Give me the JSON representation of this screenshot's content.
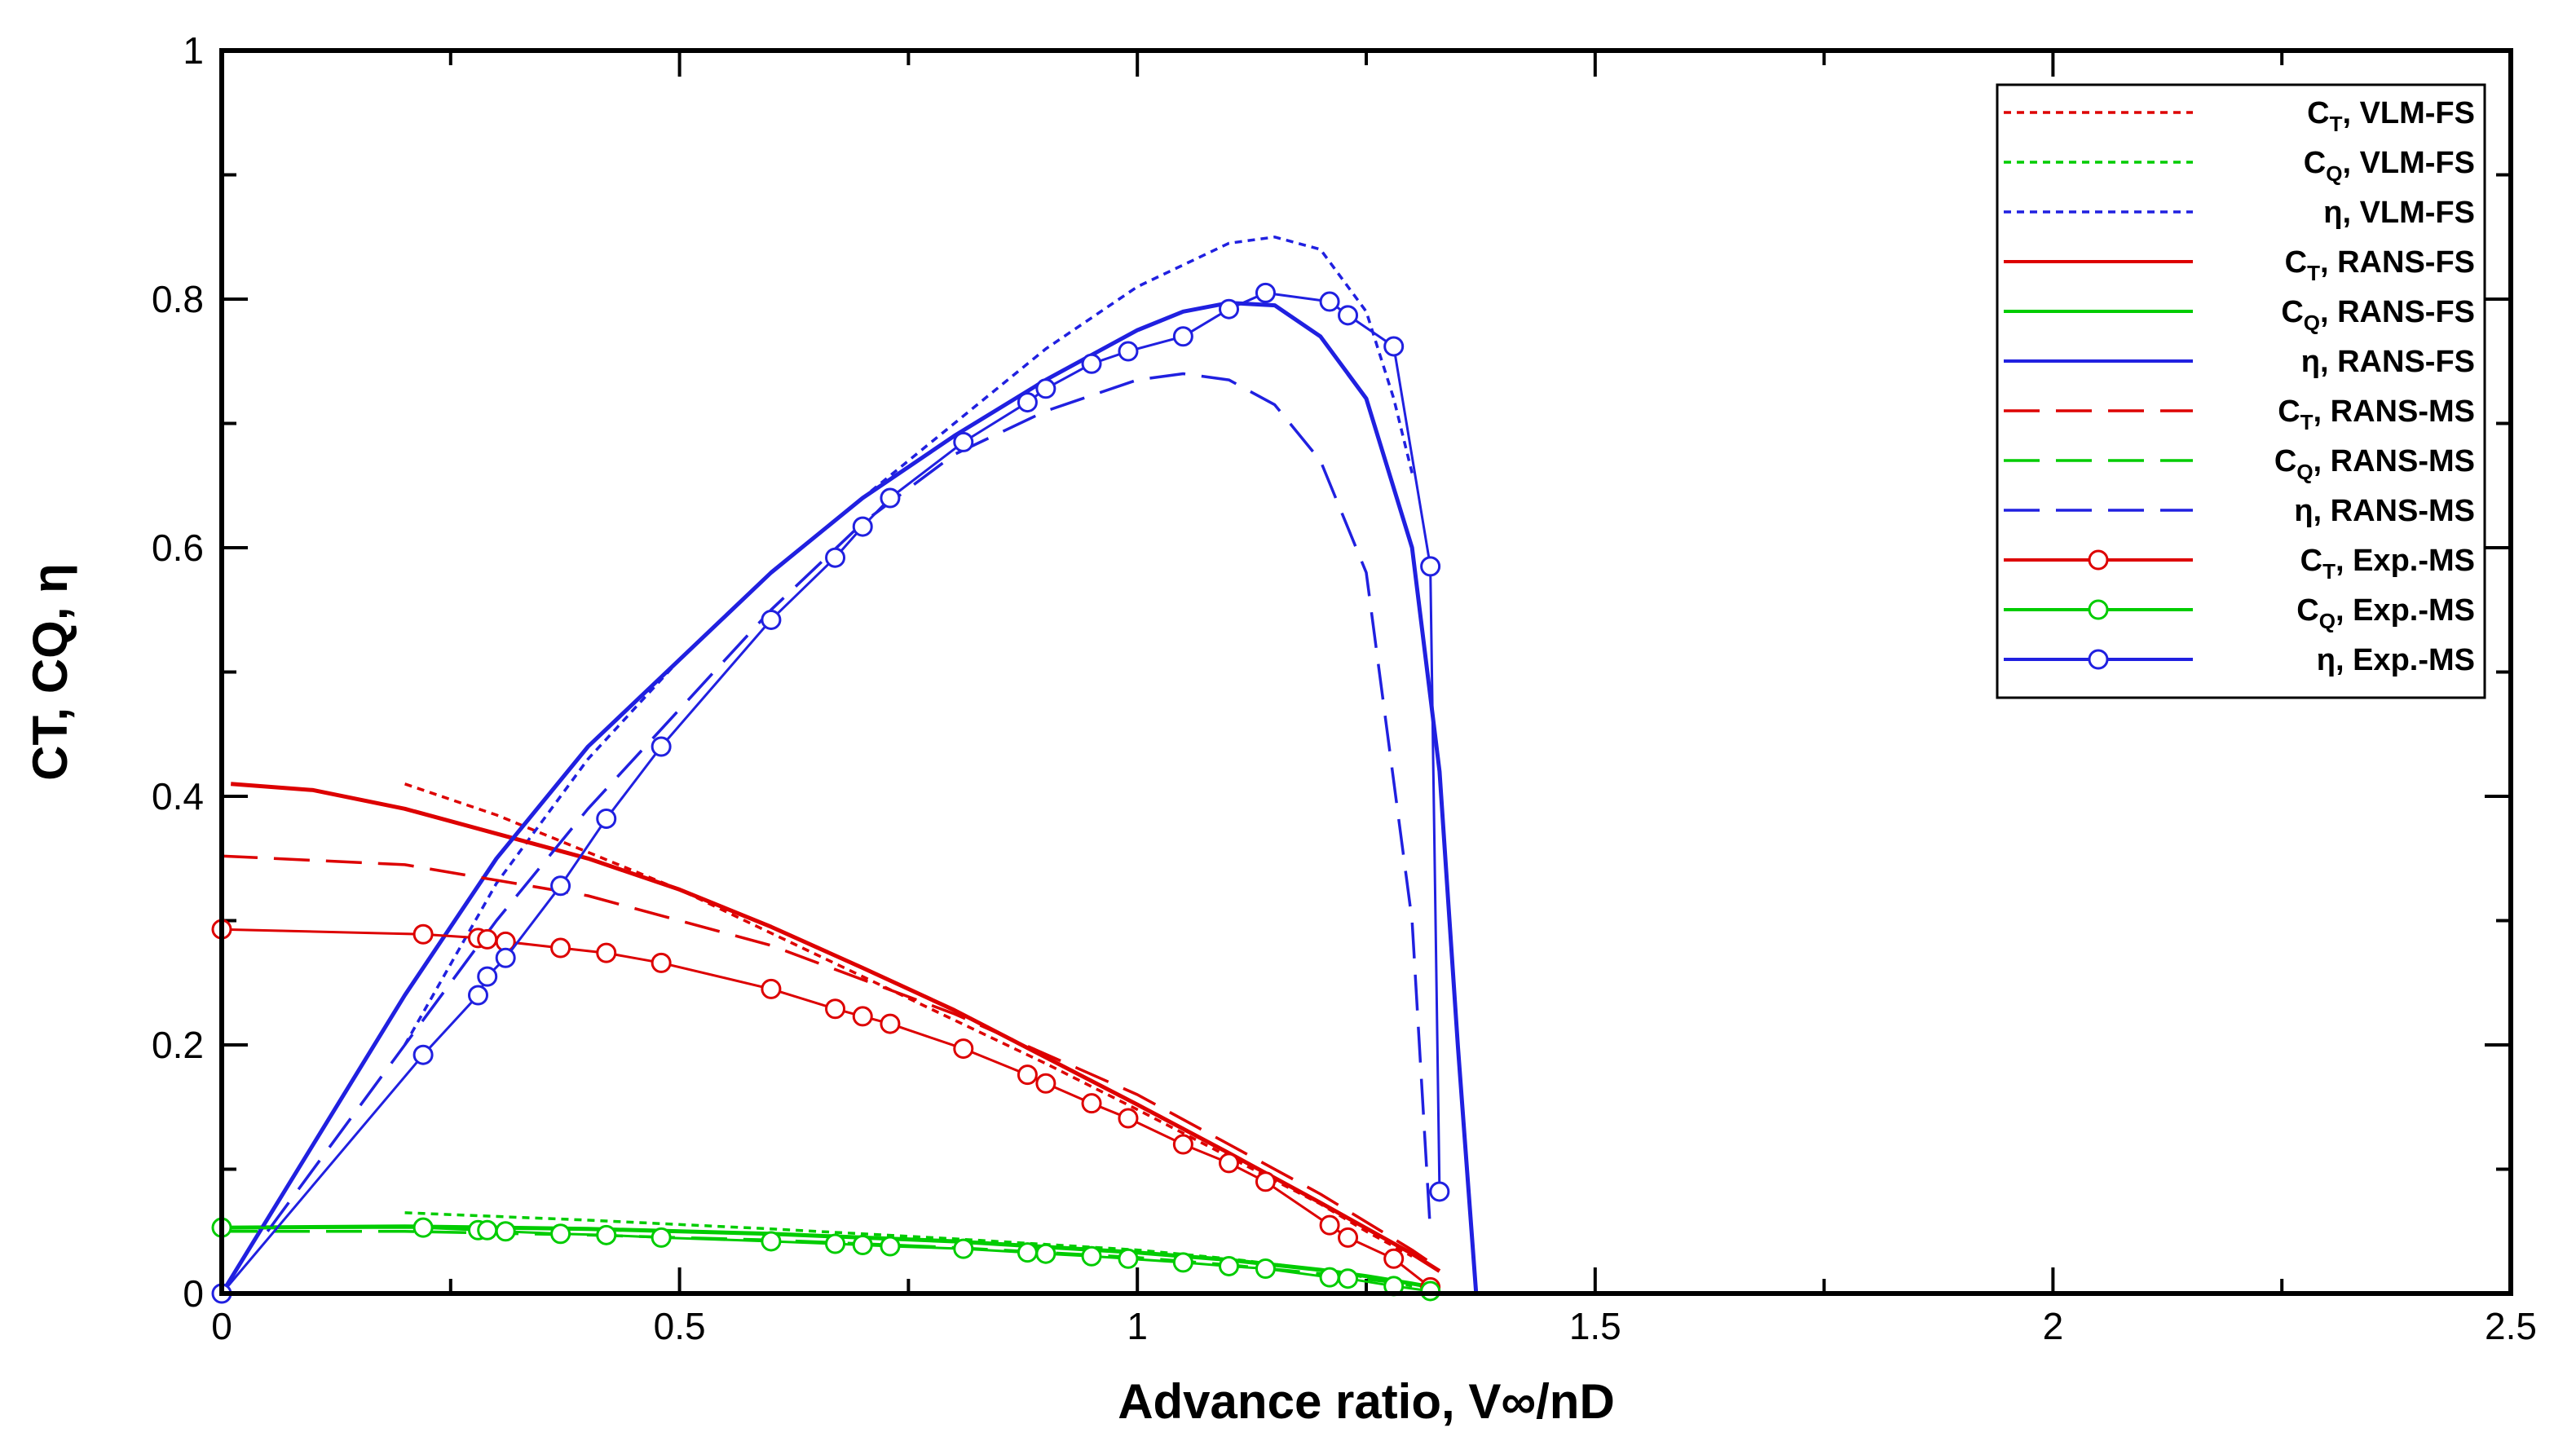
{
  "chart_data": {
    "type": "line",
    "title": "",
    "xlabel": "Advance ratio, V∞/nD",
    "ylabel": "CT, CQ, η",
    "xlim": [
      0,
      2.5
    ],
    "ylim": [
      0,
      1
    ],
    "xticks": [
      0,
      0.5,
      1,
      1.5,
      2,
      2.5
    ],
    "xtick_labels": [
      "0",
      "0.5",
      "1",
      "1.5",
      "2",
      "2.5"
    ],
    "yticks": [
      0,
      0.2,
      0.4,
      0.6,
      0.8,
      1
    ],
    "ytick_labels": [
      "0",
      "0.2",
      "0.4",
      "0.6",
      "0.8",
      "1"
    ],
    "legend_position": "top-right",
    "series": [
      {
        "name": "CT, VLM-FS",
        "sym": "C",
        "sub": "T",
        "method": "VLM-FS",
        "color": "#dd0000",
        "style": "dotted",
        "marker": false,
        "x": [
          0.2,
          0.3,
          0.4,
          0.5,
          0.6,
          0.7,
          0.8,
          0.9,
          1.0,
          1.1,
          1.2,
          1.25,
          1.3
        ],
        "y": [
          0.41,
          0.385,
          0.355,
          0.325,
          0.29,
          0.255,
          0.22,
          0.185,
          0.148,
          0.11,
          0.072,
          0.05,
          0.03
        ]
      },
      {
        "name": "CQ, VLM-FS",
        "sym": "C",
        "sub": "Q",
        "method": "VLM-FS",
        "color": "#00cc00",
        "style": "dotted",
        "marker": false,
        "x": [
          0.2,
          0.4,
          0.6,
          0.8,
          1.0,
          1.1,
          1.2,
          1.25,
          1.3
        ],
        "y": [
          0.065,
          0.059,
          0.052,
          0.044,
          0.035,
          0.028,
          0.019,
          0.013,
          0.006
        ]
      },
      {
        "name": "η, VLM-FS",
        "sym": "η",
        "sub": "",
        "method": "VLM-FS",
        "color": "#2020e0",
        "style": "dotted",
        "marker": false,
        "x": [
          0.2,
          0.3,
          0.4,
          0.5,
          0.6,
          0.7,
          0.8,
          0.9,
          1.0,
          1.1,
          1.15,
          1.2,
          1.25,
          1.28,
          1.3
        ],
        "y": [
          0.2,
          0.33,
          0.43,
          0.51,
          0.58,
          0.64,
          0.7,
          0.76,
          0.81,
          0.845,
          0.85,
          0.84,
          0.79,
          0.72,
          0.66
        ]
      },
      {
        "name": "CT, RANS-FS",
        "sym": "C",
        "sub": "T",
        "method": "RANS-FS",
        "color": "#dd0000",
        "style": "solid",
        "marker": false,
        "x": [
          0.01,
          0.1,
          0.2,
          0.3,
          0.4,
          0.5,
          0.6,
          0.7,
          0.8,
          0.9,
          1.0,
          1.1,
          1.2,
          1.3,
          1.33
        ],
        "y": [
          0.41,
          0.405,
          0.39,
          0.37,
          0.35,
          0.325,
          0.295,
          0.262,
          0.228,
          0.19,
          0.152,
          0.113,
          0.073,
          0.032,
          0.018
        ]
      },
      {
        "name": "CQ, RANS-FS",
        "sym": "C",
        "sub": "Q",
        "method": "RANS-FS",
        "color": "#00cc00",
        "style": "solid",
        "marker": false,
        "x": [
          0,
          0.2,
          0.4,
          0.6,
          0.8,
          1.0,
          1.1,
          1.2,
          1.25,
          1.3,
          1.33
        ],
        "y": [
          0.053,
          0.054,
          0.052,
          0.048,
          0.042,
          0.033,
          0.027,
          0.019,
          0.014,
          0.008,
          0.004
        ]
      },
      {
        "name": "η, RANS-FS",
        "sym": "η",
        "sub": "",
        "method": "RANS-FS",
        "color": "#2020e0",
        "style": "solid",
        "marker": false,
        "x": [
          0,
          0.1,
          0.2,
          0.3,
          0.4,
          0.5,
          0.6,
          0.7,
          0.8,
          0.9,
          1.0,
          1.05,
          1.1,
          1.15,
          1.2,
          1.25,
          1.3,
          1.33,
          1.35,
          1.37
        ],
        "y": [
          0,
          0.12,
          0.24,
          0.35,
          0.44,
          0.51,
          0.58,
          0.64,
          0.69,
          0.735,
          0.775,
          0.79,
          0.797,
          0.795,
          0.77,
          0.72,
          0.6,
          0.42,
          0.2,
          0
        ]
      },
      {
        "name": "CT, RANS-MS",
        "sym": "C",
        "sub": "T",
        "method": "RANS-MS",
        "color": "#dd0000",
        "style": "dashed",
        "marker": false,
        "x": [
          0,
          0.2,
          0.4,
          0.6,
          0.8,
          1.0,
          1.1,
          1.2,
          1.3,
          1.33
        ],
        "y": [
          0.352,
          0.345,
          0.32,
          0.28,
          0.225,
          0.16,
          0.12,
          0.08,
          0.035,
          0.02
        ]
      },
      {
        "name": "CQ, RANS-MS",
        "sym": "C",
        "sub": "Q",
        "method": "RANS-MS",
        "color": "#00cc00",
        "style": "dashed",
        "marker": false,
        "x": [
          0,
          0.2,
          0.4,
          0.6,
          0.8,
          1.0,
          1.1,
          1.2,
          1.3,
          1.33
        ],
        "y": [
          0.05,
          0.05,
          0.047,
          0.043,
          0.037,
          0.029,
          0.023,
          0.016,
          0.007,
          0.004
        ]
      },
      {
        "name": "η, RANS-MS",
        "sym": "η",
        "sub": "",
        "method": "RANS-MS",
        "color": "#2020e0",
        "style": "dashed",
        "marker": false,
        "x": [
          0.05,
          0.1,
          0.2,
          0.3,
          0.4,
          0.5,
          0.6,
          0.7,
          0.8,
          0.9,
          1.0,
          1.05,
          1.1,
          1.15,
          1.2,
          1.25,
          1.3,
          1.32
        ],
        "y": [
          0.05,
          0.1,
          0.2,
          0.3,
          0.39,
          0.47,
          0.55,
          0.62,
          0.675,
          0.71,
          0.735,
          0.74,
          0.735,
          0.715,
          0.67,
          0.58,
          0.3,
          0.05
        ]
      },
      {
        "name": "CT, Exp.-MS",
        "sym": "C",
        "sub": "T",
        "method": "Exp.-MS",
        "color": "#dd0000",
        "style": "solid",
        "marker": true,
        "x": [
          0,
          0.22,
          0.28,
          0.29,
          0.31,
          0.37,
          0.42,
          0.48,
          0.6,
          0.67,
          0.7,
          0.73,
          0.81,
          0.88,
          0.9,
          0.95,
          0.99,
          1.05,
          1.1,
          1.14,
          1.21,
          1.23,
          1.28,
          1.32
        ],
        "y": [
          0.293,
          0.289,
          0.286,
          0.285,
          0.283,
          0.278,
          0.274,
          0.266,
          0.245,
          0.229,
          0.223,
          0.217,
          0.197,
          0.176,
          0.169,
          0.153,
          0.141,
          0.12,
          0.105,
          0.09,
          0.055,
          0.045,
          0.028,
          0.005
        ]
      },
      {
        "name": "CQ, Exp.-MS",
        "sym": "C",
        "sub": "Q",
        "method": "Exp.-MS",
        "color": "#00cc00",
        "style": "solid",
        "marker": true,
        "x": [
          0,
          0.22,
          0.28,
          0.29,
          0.31,
          0.37,
          0.42,
          0.48,
          0.6,
          0.67,
          0.7,
          0.73,
          0.81,
          0.88,
          0.9,
          0.95,
          0.99,
          1.05,
          1.1,
          1.14,
          1.21,
          1.23,
          1.28,
          1.32
        ],
        "y": [
          0.053,
          0.053,
          0.051,
          0.051,
          0.05,
          0.048,
          0.047,
          0.045,
          0.042,
          0.04,
          0.039,
          0.038,
          0.036,
          0.033,
          0.032,
          0.03,
          0.028,
          0.025,
          0.022,
          0.02,
          0.013,
          0.012,
          0.006,
          0.002
        ]
      },
      {
        "name": "η, Exp.-MS",
        "sym": "η",
        "sub": "",
        "method": "Exp.-MS",
        "color": "#2020e0",
        "style": "solid",
        "marker": true,
        "x": [
          0,
          0.22,
          0.28,
          0.29,
          0.31,
          0.37,
          0.42,
          0.48,
          0.6,
          0.67,
          0.7,
          0.73,
          0.81,
          0.88,
          0.9,
          0.95,
          0.99,
          1.05,
          1.1,
          1.14,
          1.21,
          1.23,
          1.28,
          1.32,
          1.33
        ],
        "y": [
          0,
          0.192,
          0.24,
          0.255,
          0.27,
          0.328,
          0.382,
          0.44,
          0.542,
          0.592,
          0.617,
          0.64,
          0.685,
          0.717,
          0.728,
          0.748,
          0.758,
          0.77,
          0.792,
          0.805,
          0.798,
          0.787,
          0.762,
          0.585,
          0.082
        ]
      }
    ]
  }
}
